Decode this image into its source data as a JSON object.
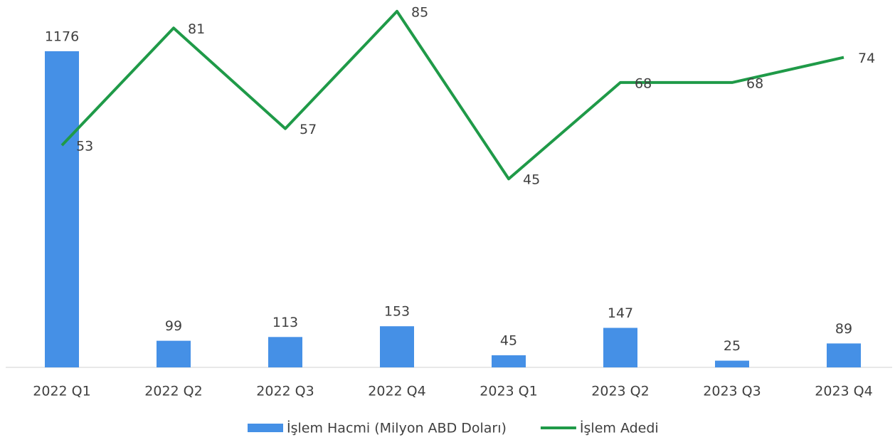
{
  "chart_data": {
    "type": "bar_line",
    "categories": [
      "2022 Q1",
      "2022 Q2",
      "2022 Q3",
      "2022 Q4",
      "2023 Q1",
      "2023 Q2",
      "2023 Q3",
      "2023 Q4"
    ],
    "series": [
      {
        "name": "İşlem Hacmi (Milyon ABD Doları)",
        "type": "bar",
        "color": "#4590e6",
        "values": [
          1176,
          99,
          113,
          153,
          45,
          147,
          25,
          89
        ]
      },
      {
        "name": "İşlem Adedi",
        "type": "line",
        "axis": "y2",
        "color": "#1f9a48",
        "values": [
          53,
          81,
          57,
          85,
          45,
          68,
          68,
          74
        ]
      }
    ],
    "ylim": [
      0,
      1340
    ],
    "y2lim": [
      0,
      86
    ],
    "legend": "bottom"
  }
}
